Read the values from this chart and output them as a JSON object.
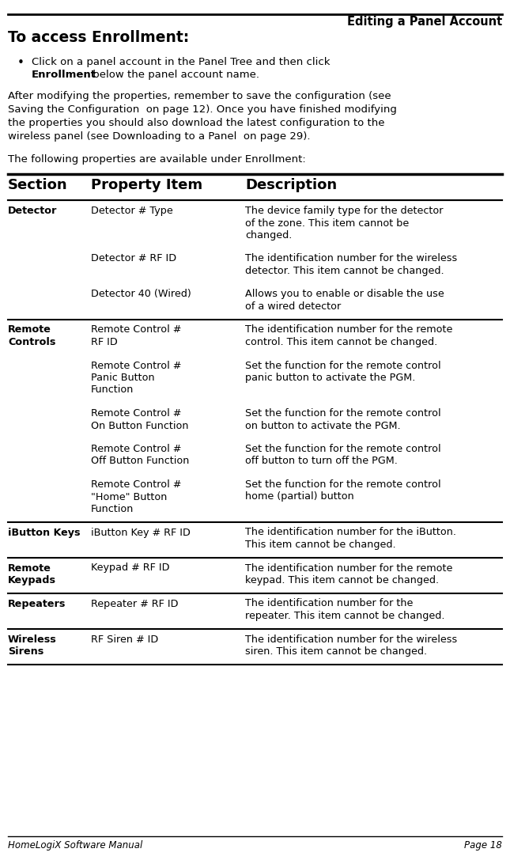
{
  "title": "Editing a Panel Account",
  "heading": "To access Enrollment:",
  "footer_left": "HomeLogiX Software Manual",
  "footer_right": "Page 18",
  "table_headers": [
    "Section",
    "Property Item",
    "Description"
  ],
  "rows": [
    {
      "section": "Detector",
      "section_bold": true,
      "property": "Detector # Type",
      "desc_lines": [
        "The device family type for the detector",
        "of the zone. This item cannot be",
        "changed."
      ],
      "prop_lines": [
        "Detector # Type"
      ],
      "sec_lines": [
        "Detector"
      ],
      "top_border": true
    },
    {
      "section": "",
      "section_bold": false,
      "property": "Detector # RF ID",
      "desc_lines": [
        "The identification number for the wireless",
        "detector. This item cannot be changed."
      ],
      "prop_lines": [
        "Detector # RF ID"
      ],
      "sec_lines": [],
      "top_border": false
    },
    {
      "section": "",
      "section_bold": false,
      "property": "Detector 40 (Wired)",
      "desc_lines": [
        "Allows you to enable or disable the use",
        "of a wired detector"
      ],
      "prop_lines": [
        "Detector 40 (Wired)"
      ],
      "sec_lines": [],
      "top_border": false
    },
    {
      "section": "Remote\nControls",
      "section_bold": true,
      "property": "Remote Control #\nRF ID",
      "desc_lines": [
        "The identification number for the remote",
        "control. This item cannot be changed."
      ],
      "prop_lines": [
        "Remote Control #",
        "RF ID"
      ],
      "sec_lines": [
        "Remote",
        "Controls"
      ],
      "top_border": true
    },
    {
      "section": "",
      "section_bold": false,
      "property": "Remote Control #\nPanic Button\nFunction",
      "desc_lines": [
        "Set the function for the remote control",
        "panic button to activate the PGM."
      ],
      "prop_lines": [
        "Remote Control #",
        "Panic Button",
        "Function"
      ],
      "sec_lines": [],
      "top_border": false
    },
    {
      "section": "",
      "section_bold": false,
      "property": "Remote Control #\nOn Button Function",
      "desc_lines": [
        "Set the function for the remote control",
        "on button to activate the PGM."
      ],
      "prop_lines": [
        "Remote Control #",
        "On Button Function"
      ],
      "sec_lines": [],
      "top_border": false
    },
    {
      "section": "",
      "section_bold": false,
      "property": "Remote Control #\nOff Button Function",
      "desc_lines": [
        "Set the function for the remote control",
        "off button to turn off the PGM."
      ],
      "prop_lines": [
        "Remote Control #",
        "Off Button Function"
      ],
      "sec_lines": [],
      "top_border": false
    },
    {
      "section": "",
      "section_bold": false,
      "property": "Remote Control #\n\"Home\" Button\nFunction",
      "desc_lines": [
        "Set the function for the remote control",
        "home (partial) button"
      ],
      "prop_lines": [
        "Remote Control #",
        "\"Home\" Button",
        "Function"
      ],
      "sec_lines": [],
      "top_border": false
    },
    {
      "section": "iButton Keys",
      "section_bold": true,
      "property": "iButton Key # RF ID",
      "desc_lines": [
        "The identification number for the iButton.",
        "This item cannot be changed."
      ],
      "prop_lines": [
        "iButton Key # RF ID"
      ],
      "sec_lines": [
        "iButton Keys"
      ],
      "top_border": true
    },
    {
      "section": "Remote\nKeypads",
      "section_bold": true,
      "property": "Keypad # RF ID",
      "desc_lines": [
        "The identification number for the remote",
        "keypad. This item cannot be changed."
      ],
      "prop_lines": [
        "Keypad # RF ID"
      ],
      "sec_lines": [
        "Remote",
        "Keypads"
      ],
      "top_border": true
    },
    {
      "section": "Repeaters",
      "section_bold": true,
      "property": "Repeater # RF ID",
      "desc_lines": [
        "The identification number for the",
        "repeater. This item cannot be changed."
      ],
      "prop_lines": [
        "Repeater # RF ID"
      ],
      "sec_lines": [
        "Repeaters"
      ],
      "top_border": true
    },
    {
      "section": "Wireless\nSirens",
      "section_bold": true,
      "property": "RF Siren # ID",
      "desc_lines": [
        "The identification number for the wireless",
        "siren. This item cannot be changed."
      ],
      "prop_lines": [
        "RF Siren # ID"
      ],
      "sec_lines": [
        "Wireless",
        "Sirens"
      ],
      "top_border": true
    }
  ]
}
